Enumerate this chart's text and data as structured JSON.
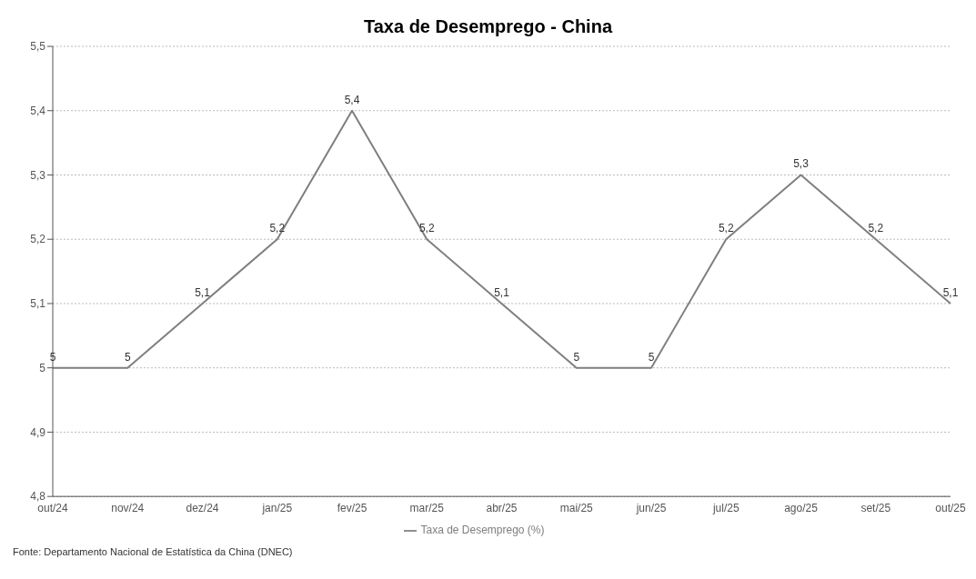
{
  "chart_data": {
    "type": "line",
    "title": "Taxa de Desemprego - China",
    "categories": [
      "out/24",
      "nov/24",
      "dez/24",
      "jan/25",
      "fev/25",
      "mar/25",
      "abr/25",
      "mai/25",
      "jun/25",
      "jul/25",
      "ago/25",
      "set/25",
      "out/25"
    ],
    "series": [
      {
        "name": "Taxa de Desemprego (%)",
        "color": "#7f7f7f",
        "values": [
          5,
          5,
          5.1,
          5.2,
          5.4,
          5.2,
          5.1,
          5,
          5,
          5.2,
          5.3,
          5.2,
          5.1
        ],
        "value_labels": [
          "5",
          "5",
          "5,1",
          "5,2",
          "5,4",
          "5,2",
          "5,1",
          "5",
          "5",
          "5,2",
          "5,3",
          "5,2",
          "5,1"
        ]
      }
    ],
    "ylim": [
      4.8,
      5.5
    ],
    "yticks": [
      {
        "value": 4.8,
        "label": "4,8"
      },
      {
        "value": 4.9,
        "label": "4,9"
      },
      5,
      {
        "value": 5.1,
        "label": "5,1"
      },
      {
        "value": 5.2,
        "label": "5,2"
      },
      {
        "value": 5.3,
        "label": "5,3"
      },
      {
        "value": 5.4,
        "label": "5,4"
      },
      {
        "value": 5.5,
        "label": "5,5"
      }
    ],
    "grid": "y",
    "legend": "bottom",
    "marker": "none",
    "line_style": "solid",
    "annotations": [
      "Fonte: Departamento Nacional de Estatística da China (DNEC)"
    ]
  }
}
